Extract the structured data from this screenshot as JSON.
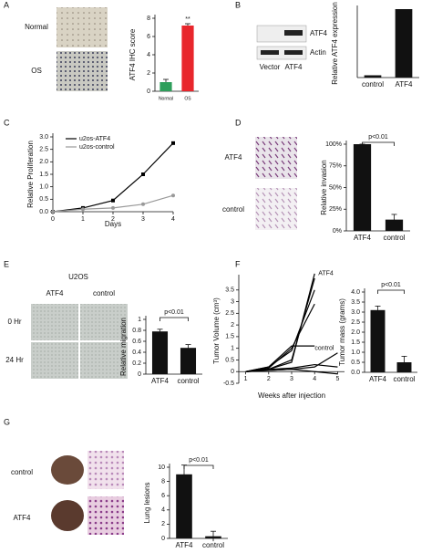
{
  "panel_labels": [
    "A",
    "B",
    "C",
    "D",
    "E",
    "F",
    "G"
  ],
  "images": {
    "A": [
      "Normal",
      "OS"
    ],
    "B": {
      "bands": [
        "ATF4",
        "Actin"
      ],
      "lanes": [
        "Vector",
        "ATF4"
      ]
    },
    "D": [
      "ATF4",
      "control"
    ],
    "E": {
      "title": "U2OS",
      "columns": [
        "ATF4",
        "control"
      ],
      "rows": [
        "0 Hr",
        "24 Hr"
      ]
    },
    "G": [
      "control",
      "ATF4"
    ]
  },
  "chart_data": [
    {
      "type": "bar",
      "ylabel": "ATF4 IHC score",
      "categories": [
        "Normal",
        "OS"
      ],
      "values": [
        1.0,
        7.2
      ],
      "errors": [
        0.3,
        0.2
      ],
      "colors": [
        "#2e9e5b",
        "#e8262c"
      ],
      "ylim": [
        0,
        8
      ],
      "yticks": [
        0,
        2,
        4,
        6,
        8
      ],
      "annotation": "**",
      "bracket": false
    },
    {
      "type": "bar",
      "ylabel": "Relative ATF4 expression",
      "categories": [
        "control",
        "ATF4"
      ],
      "values": [
        1,
        30
      ],
      "color": "#111111",
      "ylim": [
        0,
        30
      ]
    },
    {
      "type": "line",
      "xlabel": "Days",
      "ylabel": "Relative Proliferation",
      "x": [
        0,
        1,
        2,
        3,
        4
      ],
      "xlim": [
        0,
        4
      ],
      "xticks": [
        0,
        1,
        2,
        3,
        4
      ],
      "ylim": [
        0,
        3
      ],
      "yticks": [
        {
          "value": 0,
          "label": "0.0"
        },
        0.5,
        {
          "value": 1,
          "label": "1.0"
        },
        1.5,
        {
          "value": 2,
          "label": "2.0"
        },
        2.5,
        {
          "value": 3,
          "label": "3.0"
        }
      ],
      "markers": true,
      "series": [
        {
          "name": "u2os-ATF4",
          "color": "#000000",
          "values": [
            0,
            0.15,
            0.45,
            1.5,
            2.75
          ]
        },
        {
          "name": "u2os-control",
          "color": "#999999",
          "values": [
            0,
            0.1,
            0.15,
            0.3,
            0.65
          ]
        }
      ]
    },
    {
      "type": "bar",
      "ylabel": "Relative invasion",
      "categories": [
        "ATF4",
        "control"
      ],
      "values": [
        100,
        13
      ],
      "errors": [
        0,
        6
      ],
      "color": "#111111",
      "ylim": [
        0,
        100
      ],
      "yticks": [
        {
          "value": 0,
          "label": "0%"
        },
        {
          "value": 25,
          "label": "25%"
        },
        {
          "value": 50,
          "label": "50%"
        },
        {
          "value": 75,
          "label": "75%"
        },
        {
          "value": 100,
          "label": "100%"
        }
      ],
      "annotation": "p<0.01",
      "bracket": true
    },
    {
      "type": "bar",
      "ylabel": "Relative migration",
      "categories": [
        "ATF4",
        "control"
      ],
      "values": [
        0.78,
        0.48
      ],
      "errors": [
        0.04,
        0.06
      ],
      "color": "#111111",
      "ylim": [
        0,
        1
      ],
      "yticks": [
        0,
        0.2,
        0.4,
        0.6,
        0.8,
        1
      ],
      "annotation": "p<0.01",
      "bracket": true
    },
    {
      "type": "line",
      "xlabel": "Weeks after injection",
      "ylabel": "Tumor Volume (cm³)",
      "x": [
        1,
        2,
        3,
        4,
        5
      ],
      "xlim": [
        0.7,
        5.3
      ],
      "xticks": [
        1,
        2,
        3,
        4,
        5
      ],
      "ylim": [
        -0.5,
        4
      ],
      "yticks": [
        -0.5,
        0,
        0.5,
        1,
        1.5,
        2,
        2.5,
        3,
        3.5
      ],
      "markers": false,
      "annotations": [
        "ATF4",
        "control"
      ],
      "series": [
        {
          "color": "#000000",
          "values": [
            0,
            0.1,
            0.4,
            4.2,
            null
          ]
        },
        {
          "color": "#000000",
          "values": [
            0,
            0.1,
            0.5,
            4.0,
            null
          ]
        },
        {
          "color": "#000000",
          "values": [
            0,
            0.2,
            0.9,
            3.5,
            null
          ]
        },
        {
          "color": "#000000",
          "values": [
            0,
            0.15,
            1.0,
            2.9,
            null
          ]
        },
        {
          "color": "#000000",
          "values": [
            0,
            0.2,
            1.1,
            1.1,
            null
          ]
        },
        {
          "color": "#000000",
          "values": [
            0,
            0.05,
            0.1,
            0.2,
            0.8
          ]
        },
        {
          "color": "#000000",
          "values": [
            0,
            0.1,
            0.15,
            0.3,
            0.2
          ]
        },
        {
          "color": "#000000",
          "values": [
            0,
            0.05,
            0.1,
            0.0,
            -0.1
          ]
        }
      ]
    },
    {
      "type": "bar",
      "ylabel": "Tumor mass (grams)",
      "categories": [
        "ATF4",
        "control"
      ],
      "values": [
        3.1,
        0.5
      ],
      "errors": [
        0.2,
        0.3
      ],
      "color": "#111111",
      "ylim": [
        0,
        4
      ],
      "yticks": [
        {
          "value": 0,
          "label": "0.0"
        },
        0.5,
        {
          "value": 1,
          "label": "1.0"
        },
        1.5,
        {
          "value": 2,
          "label": "2.0"
        },
        2.5,
        {
          "value": 3,
          "label": "3.0"
        },
        3.5,
        {
          "value": 4,
          "label": "4.0"
        }
      ],
      "annotation": "p<0.01",
      "bracket": true
    },
    {
      "type": "bar",
      "ylabel": "Lung lesions",
      "categories": [
        "ATF4",
        "control"
      ],
      "values": [
        9,
        0.3
      ],
      "errors": [
        1.3,
        0.7
      ],
      "color": "#111111",
      "ylim": [
        0,
        10
      ],
      "yticks": [
        0,
        2,
        4,
        6,
        8,
        10
      ],
      "annotation": "p<0.01",
      "bracket": true
    }
  ]
}
